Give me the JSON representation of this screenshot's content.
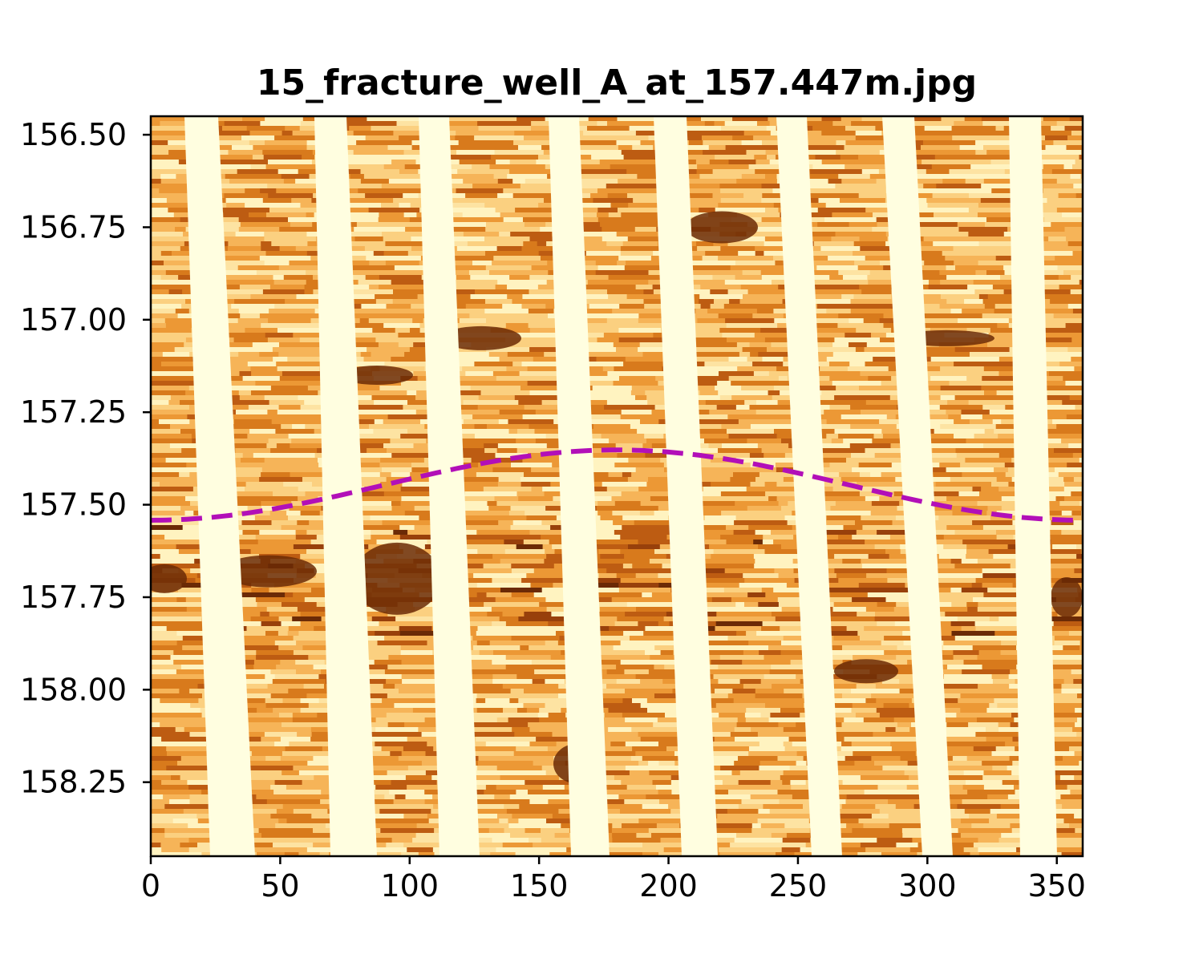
{
  "chart_data": {
    "type": "heatmap",
    "title": "15_fracture_well_A_at_157.447m.jpg",
    "xlabel": "",
    "ylabel": "",
    "xlim": [
      0,
      360
    ],
    "ylim": [
      158.45,
      156.45
    ],
    "y_inverted": true,
    "grid": false,
    "x_ticks": [
      0,
      50,
      100,
      150,
      200,
      250,
      300,
      350
    ],
    "x_tick_labels": [
      "0",
      "50",
      "100",
      "150",
      "200",
      "250",
      "300",
      "350"
    ],
    "y_ticks": [
      156.5,
      156.75,
      157.0,
      157.25,
      157.5,
      157.75,
      158.0,
      158.25
    ],
    "y_tick_labels": [
      "156.50",
      "156.75",
      "157.00",
      "157.25",
      "157.50",
      "157.75",
      "158.00",
      "158.25"
    ],
    "colormap": "YlOrBr",
    "background_image": "borehole image log (stripes of pad data separated by pale gaps)",
    "series": [
      {
        "type": "sinusoid",
        "style": "dashed",
        "color": "#b20fb8",
        "depth_center": 157.447,
        "amplitude": 0.095,
        "trough_azimuth": 180,
        "x_start": 0,
        "x_end": 360,
        "depth_at_0": 157.542,
        "depth_at_180": 157.352
      }
    ]
  },
  "colors": {
    "pad_gap": "#fffee0",
    "dark": "#6b2a06",
    "mid": "#d8801c",
    "light": "#fbd58a",
    "curve": "#b20fb8"
  }
}
